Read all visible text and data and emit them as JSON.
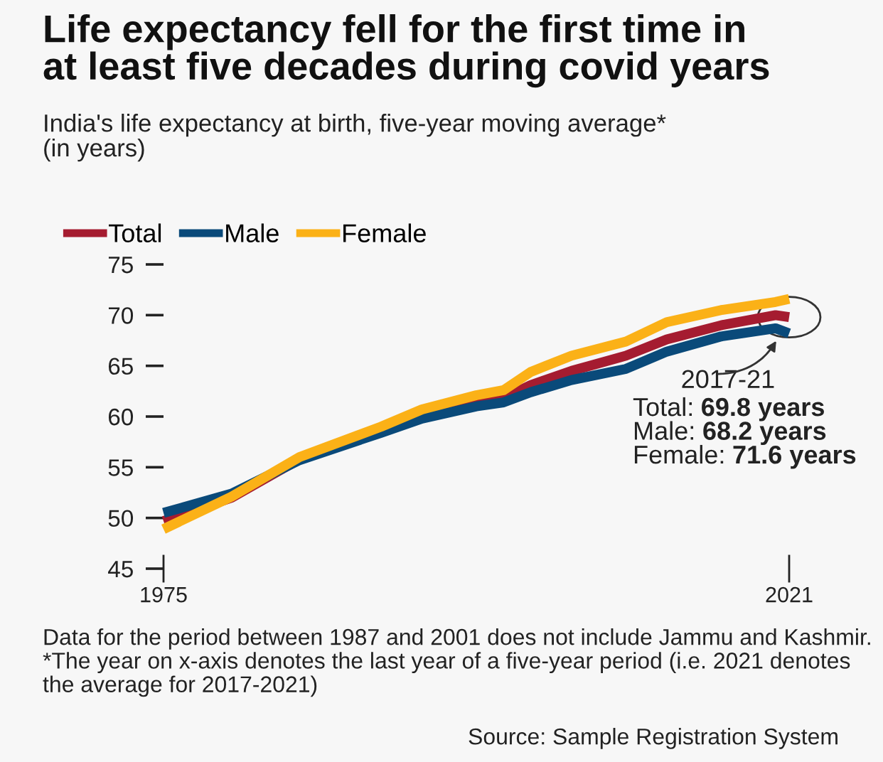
{
  "chart_data": {
    "type": "line",
    "title": "Life expectancy fell for the first time in\nat least five decades during covid years",
    "subtitle": "India's life expectancy at birth, five-year moving average*\n(in years)",
    "x": [
      1975,
      1980,
      1985,
      1991,
      1994,
      1998,
      2000,
      2002,
      2005,
      2009,
      2012,
      2016,
      2020,
      2021
    ],
    "series": [
      {
        "name": "Total",
        "color": "#a51c30",
        "values": [
          49.7,
          52.0,
          55.8,
          58.7,
          60.2,
          61.4,
          61.8,
          63.1,
          64.5,
          66.0,
          67.6,
          69.0,
          70.0,
          69.8
        ]
      },
      {
        "name": "Male",
        "color": "#0a4a7a",
        "values": [
          50.5,
          52.4,
          55.7,
          58.4,
          59.8,
          61.0,
          61.4,
          62.4,
          63.6,
          64.7,
          66.4,
          67.9,
          68.7,
          68.2
        ]
      },
      {
        "name": "Female",
        "color": "#fbb117",
        "values": [
          48.9,
          52.1,
          56.0,
          59.0,
          60.7,
          62.1,
          62.6,
          64.4,
          66.0,
          67.4,
          69.3,
          70.5,
          71.3,
          71.6
        ]
      }
    ],
    "xlim": [
      1975,
      2021
    ],
    "xticks": [
      1975,
      2021
    ],
    "ylim": [
      45,
      75
    ],
    "yticks": [
      45,
      50,
      55,
      60,
      65,
      70,
      75
    ],
    "legend": "top left",
    "grid": false,
    "line_style": "solid",
    "marker": "none",
    "annotations": [
      {
        "text": "2017-21\nTotal: 69.8 years\nMale: 68.2 years\nFemale: 71.6 years",
        "x": 2021,
        "y": 69.8
      },
      "Data for the period between 1987 and 2001 does not include Jammu and Kashmir. *The year on x-axis denotes the last year of a five-year period (i.e. 2021 denotes the average for 2017-2021)",
      "Source: Sample Registration System"
    ]
  }
}
